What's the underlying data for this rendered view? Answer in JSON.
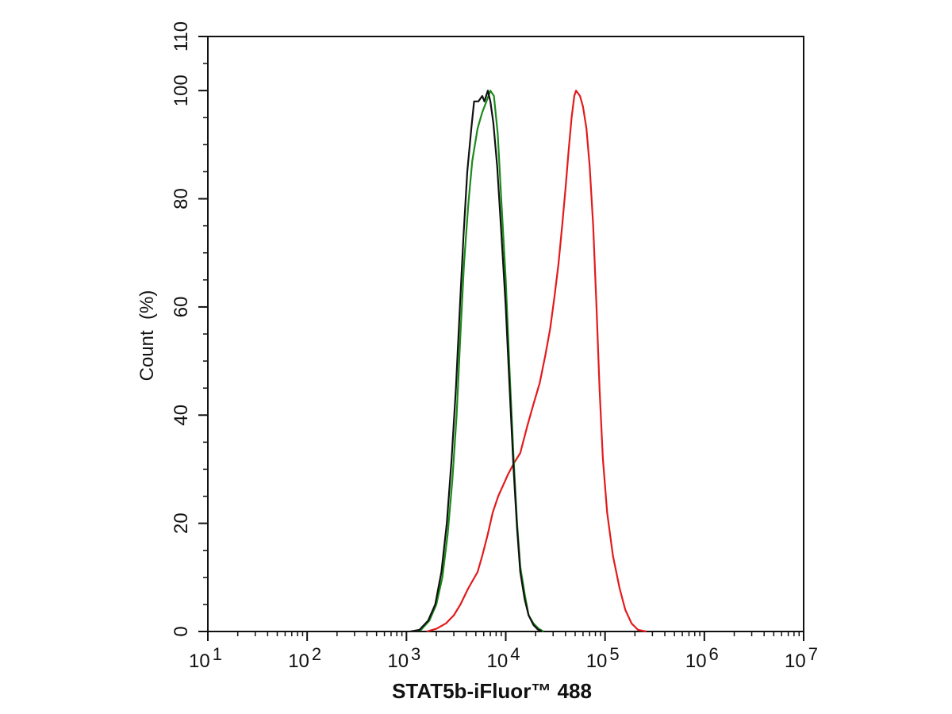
{
  "chart_data": {
    "type": "line",
    "title": "",
    "xlabel": "STAT5b-iFluor™ 488",
    "ylabel": "Count  (%)",
    "xscale": "log",
    "xlim": [
      10,
      10000000
    ],
    "ylim": [
      0,
      110
    ],
    "grid": false,
    "legend": "none",
    "x_ticks": [
      {
        "value": 10,
        "base": "10",
        "exp": "1"
      },
      {
        "value": 100,
        "base": "10",
        "exp": "2"
      },
      {
        "value": 1000,
        "base": "10",
        "exp": "3"
      },
      {
        "value": 10000,
        "base": "10",
        "exp": "4"
      },
      {
        "value": 100000,
        "base": "10",
        "exp": "5"
      },
      {
        "value": 1000000,
        "base": "10",
        "exp": "6"
      },
      {
        "value": 10000000,
        "base": "10",
        "exp": "7"
      }
    ],
    "y_ticks": [
      {
        "value": 0,
        "label": "0"
      },
      {
        "value": 20,
        "label": "20"
      },
      {
        "value": 40,
        "label": "40"
      },
      {
        "value": 60,
        "label": "60"
      },
      {
        "value": 80,
        "label": "80"
      },
      {
        "value": 100,
        "label": "100"
      },
      {
        "value": 110,
        "label": "110"
      }
    ],
    "series": [
      {
        "color": "#e31a1c",
        "points": [
          [
            1600,
            0
          ],
          [
            2000,
            0.5
          ],
          [
            2500,
            1.5
          ],
          [
            3000,
            3
          ],
          [
            3500,
            5
          ],
          [
            4200,
            8
          ],
          [
            5200,
            11
          ],
          [
            5800,
            14
          ],
          [
            6600,
            18
          ],
          [
            7400,
            22
          ],
          [
            8400,
            25
          ],
          [
            9400,
            27
          ],
          [
            10500,
            29
          ],
          [
            12000,
            31
          ],
          [
            14000,
            33
          ],
          [
            16500,
            38
          ],
          [
            19000,
            42
          ],
          [
            22000,
            46
          ],
          [
            25000,
            51
          ],
          [
            28000,
            56
          ],
          [
            31000,
            62
          ],
          [
            34000,
            68
          ],
          [
            37000,
            75
          ],
          [
            40000,
            82
          ],
          [
            43000,
            89
          ],
          [
            46000,
            95
          ],
          [
            49000,
            99
          ],
          [
            51000,
            100
          ],
          [
            56000,
            99
          ],
          [
            60000,
            97
          ],
          [
            65000,
            93
          ],
          [
            70000,
            86
          ],
          [
            76000,
            75
          ],
          [
            82000,
            60
          ],
          [
            88000,
            45
          ],
          [
            95000,
            32
          ],
          [
            105000,
            22
          ],
          [
            120000,
            14
          ],
          [
            140000,
            8
          ],
          [
            160000,
            4
          ],
          [
            185000,
            1.5
          ],
          [
            215000,
            0.3
          ],
          [
            260000,
            0
          ]
        ]
      },
      {
        "color": "#1a8a1a",
        "points": [
          [
            1100,
            0
          ],
          [
            1400,
            0.3
          ],
          [
            1700,
            2
          ],
          [
            2000,
            5
          ],
          [
            2300,
            10
          ],
          [
            2600,
            18
          ],
          [
            2900,
            28
          ],
          [
            3200,
            40
          ],
          [
            3500,
            55
          ],
          [
            3800,
            68
          ],
          [
            4200,
            79
          ],
          [
            4600,
            87
          ],
          [
            5200,
            93
          ],
          [
            5800,
            96
          ],
          [
            6400,
            98
          ],
          [
            7000,
            100
          ],
          [
            7600,
            99
          ],
          [
            8300,
            92
          ],
          [
            9000,
            80
          ],
          [
            10000,
            65
          ],
          [
            11000,
            47
          ],
          [
            12000,
            32
          ],
          [
            13000,
            20
          ],
          [
            14000,
            12
          ],
          [
            15500,
            7
          ],
          [
            17000,
            3
          ],
          [
            19000,
            1.5
          ],
          [
            21500,
            0.5
          ],
          [
            24000,
            0
          ]
        ]
      },
      {
        "color": "#111111",
        "points": [
          [
            1100,
            0
          ],
          [
            1350,
            0.3
          ],
          [
            1650,
            2
          ],
          [
            1950,
            5
          ],
          [
            2250,
            11
          ],
          [
            2550,
            20
          ],
          [
            2850,
            32
          ],
          [
            3150,
            45
          ],
          [
            3450,
            60
          ],
          [
            3750,
            73
          ],
          [
            4100,
            85
          ],
          [
            4500,
            93
          ],
          [
            4800,
            98
          ],
          [
            5300,
            98
          ],
          [
            5800,
            99
          ],
          [
            6100,
            98
          ],
          [
            6600,
            100
          ],
          [
            7000,
            98
          ],
          [
            7500,
            94
          ],
          [
            8200,
            86
          ],
          [
            9000,
            74
          ],
          [
            10000,
            60
          ],
          [
            11000,
            44
          ],
          [
            12000,
            30
          ],
          [
            13000,
            19
          ],
          [
            14000,
            11
          ],
          [
            15500,
            6
          ],
          [
            17000,
            3
          ],
          [
            19000,
            1.2
          ],
          [
            21000,
            0.4
          ],
          [
            23000,
            0
          ]
        ]
      }
    ]
  }
}
